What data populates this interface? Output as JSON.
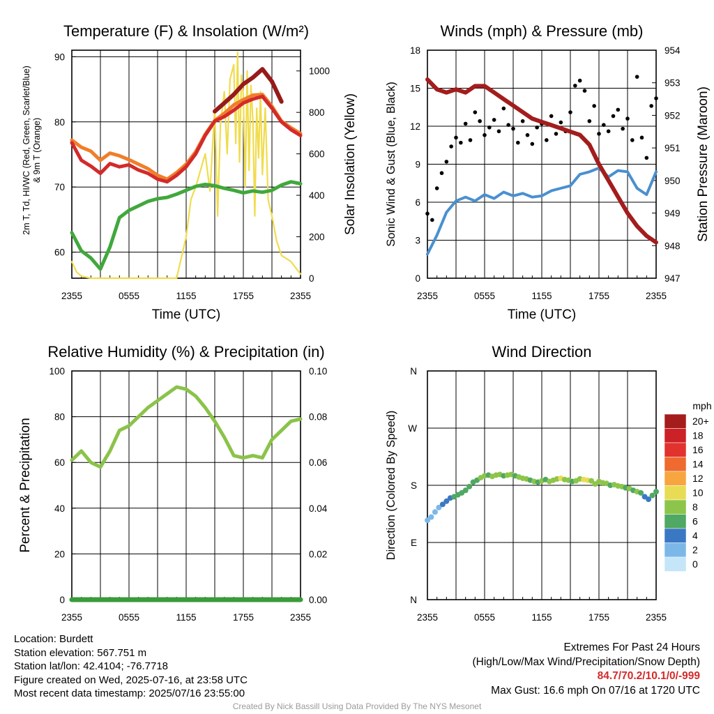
{
  "chart_data": [
    {
      "type": "line",
      "title": "Temperature (F) & Insolation (W/m²)",
      "xlabel": "Time (UTC)",
      "ylabel": "2m T, Td, HI/WC (Red, Green, Scarlet/Blue) & 9m T (Orange)",
      "y2label": "Solar Insolation (Yellow)",
      "x_ticks": [
        "2355",
        "0555",
        "1155",
        "1755",
        "2355"
      ],
      "ylim": [
        56,
        91
      ],
      "y_ticks": [
        60,
        70,
        80,
        90
      ],
      "y2lim": [
        0,
        1100
      ],
      "y2_ticks": [
        0,
        200,
        400,
        600,
        800,
        1000
      ],
      "grid": true,
      "series": [
        {
          "color": "#f07e2a",
          "axis": "left",
          "hours": [
            0,
            1,
            2,
            3,
            4,
            5,
            6,
            7,
            8,
            9,
            10,
            11,
            12,
            13,
            14,
            15,
            16,
            17,
            18,
            19,
            20,
            21,
            22,
            23,
            24
          ],
          "values": [
            77.2,
            76.1,
            75.5,
            74.1,
            75.2,
            74.8,
            74.2,
            73.5,
            72.8,
            71.8,
            71.2,
            72.2,
            73.5,
            75.4,
            78.1,
            80.2,
            81.3,
            82.6,
            83.4,
            84.1,
            84.2,
            82.4,
            80.1,
            79.1,
            78.2
          ]
        },
        {
          "color": "#d42a2a",
          "axis": "left",
          "hours": [
            0,
            1,
            2,
            3,
            4,
            5,
            6,
            7,
            8,
            9,
            10,
            11,
            12,
            13,
            14,
            15,
            16,
            17,
            18,
            19,
            20,
            21,
            22,
            23,
            24
          ],
          "values": [
            76.8,
            74.1,
            73.2,
            72.1,
            73.6,
            73.1,
            73.4,
            72.6,
            72.1,
            71.2,
            70.8,
            71.8,
            73.1,
            75.1,
            77.9,
            80.1,
            80.8,
            81.8,
            82.9,
            83.5,
            83.9,
            82.1,
            80.0,
            78.8,
            77.9
          ]
        },
        {
          "color": "#971a1a",
          "axis": "left",
          "hours": [
            15,
            16,
            17,
            18,
            19,
            20,
            21,
            22
          ],
          "values": [
            81.6,
            82.9,
            84.2,
            85.8,
            86.8,
            88.1,
            86.2,
            83.1
          ]
        },
        {
          "color": "#41a83c",
          "axis": "left",
          "hours": [
            0,
            1,
            2,
            3,
            4,
            5,
            6,
            7,
            8,
            9,
            10,
            11,
            12,
            13,
            14,
            15,
            16,
            17,
            18,
            19,
            20,
            21,
            22,
            23,
            24
          ],
          "values": [
            63.0,
            60.2,
            59.1,
            57.4,
            60.8,
            65.3,
            66.4,
            67.1,
            67.8,
            68.2,
            68.4,
            68.9,
            69.5,
            70.1,
            70.4,
            70.2,
            69.8,
            69.5,
            69.1,
            69.4,
            69.2,
            69.5,
            70.3,
            70.8,
            70.5
          ]
        },
        {
          "color": "#f0dc4e",
          "axis": "right",
          "hours": [
            0,
            0.5,
            1,
            2,
            3,
            4,
            5,
            6,
            7,
            8,
            9,
            10,
            11,
            12,
            12.5,
            13,
            13.5,
            14,
            14.5,
            15,
            15.3,
            15.6,
            16,
            16.3,
            16.6,
            17,
            17.2,
            17.4,
            17.6,
            17.8,
            18,
            18.2,
            18.4,
            18.6,
            18.8,
            19,
            19.2,
            19.4,
            19.6,
            19.8,
            20,
            20.3,
            20.6,
            21,
            21.5,
            22,
            23,
            24
          ],
          "values": [
            80,
            30,
            10,
            0,
            0,
            0,
            0,
            0,
            0,
            0,
            0,
            0,
            0,
            200,
            380,
            440,
            520,
            600,
            420,
            820,
            300,
            740,
            900,
            600,
            960,
            1030,
            650,
            1090,
            560,
            980,
            880,
            440,
            1000,
            520,
            930,
            760,
            300,
            820,
            580,
            900,
            500,
            820,
            380,
            300,
            180,
            110,
            80,
            20
          ]
        }
      ]
    },
    {
      "type": "scatter",
      "title": "Winds (mph) & Pressure (mb)",
      "xlabel": "Time (UTC)",
      "ylabel": "Sonic Wind & Gust (Blue, Black)",
      "y2label": "Station Pressure (Maroon)",
      "x_ticks": [
        "2355",
        "0555",
        "1155",
        "1755",
        "2355"
      ],
      "ylim": [
        0,
        18
      ],
      "y_ticks": [
        0,
        3,
        6,
        9,
        12,
        15,
        18
      ],
      "y2lim": [
        947,
        954
      ],
      "y2_ticks": [
        947,
        948,
        949,
        950,
        951,
        952,
        953,
        954
      ],
      "grid": true,
      "series": [
        {
          "color": "#4a90d0",
          "axis": "left",
          "hours": [
            0,
            1,
            2,
            3,
            4,
            5,
            6,
            7,
            8,
            9,
            10,
            11,
            12,
            13,
            14,
            15,
            16,
            17,
            18,
            19,
            20,
            21,
            22,
            23,
            24
          ],
          "values": [
            1.9,
            3.4,
            5.2,
            6.1,
            6.4,
            6.1,
            6.6,
            6.3,
            6.8,
            6.5,
            6.7,
            6.4,
            6.5,
            6.9,
            7.1,
            7.3,
            8.2,
            8.4,
            8.7,
            8.0,
            8.5,
            8.4,
            7.1,
            6.6,
            8.4
          ]
        },
        {
          "color": "#000000",
          "axis": "left",
          "hours": [
            0,
            0.5,
            1,
            1.5,
            2,
            2.5,
            3,
            3.5,
            4,
            4.5,
            5,
            5.5,
            6,
            6.5,
            7,
            7.5,
            8,
            8.5,
            9,
            9.5,
            10,
            10.5,
            11,
            11.5,
            12,
            12.5,
            13,
            13.5,
            14,
            14.5,
            15,
            15.5,
            16,
            16.5,
            17,
            17.5,
            18,
            18.5,
            19,
            19.5,
            20,
            20.5,
            21,
            21.5,
            22,
            22.5,
            23,
            23.5,
            24
          ],
          "values": [
            5.1,
            4.6,
            7.1,
            8.3,
            9.2,
            10.4,
            11.1,
            10.7,
            12.2,
            10.9,
            13.1,
            12.4,
            11.3,
            11.9,
            12.5,
            11.6,
            13.4,
            12.1,
            11.8,
            10.7,
            12.4,
            11.3,
            10.6,
            11.9,
            12.2,
            10.9,
            12.8,
            11.4,
            12.3,
            11.6,
            13.1,
            15.2,
            15.6,
            14.8,
            12.4,
            13.6,
            11.4,
            12.1,
            11.6,
            12.8,
            13.3,
            11.8,
            12.6,
            10.9,
            15.9,
            11.1,
            9.5,
            13.6,
            14.2
          ]
        },
        {
          "color": "#a31d1d",
          "axis": "right",
          "hours": [
            0,
            1,
            2,
            3,
            4,
            5,
            6,
            7,
            8,
            9,
            10,
            11,
            12,
            13,
            14,
            15,
            16,
            17,
            18,
            19,
            20,
            21,
            22,
            23,
            24
          ],
          "values": [
            953.1,
            952.8,
            952.7,
            952.8,
            952.7,
            952.9,
            952.9,
            952.7,
            952.5,
            952.3,
            952.1,
            951.9,
            951.8,
            951.7,
            951.6,
            951.5,
            951.4,
            951.1,
            950.5,
            950.0,
            949.5,
            949.0,
            948.6,
            948.3,
            948.1
          ]
        }
      ]
    },
    {
      "type": "line",
      "title": "Relative Humidity (%) & Precipitation (in)",
      "ylabel": "Percent & Precipitation",
      "x_ticks": [
        "2355",
        "0555",
        "1155",
        "1755",
        "2355"
      ],
      "ylim": [
        0,
        100
      ],
      "y_ticks": [
        0,
        20,
        40,
        60,
        80,
        100
      ],
      "y2lim": [
        0,
        0.1
      ],
      "y2_ticks": [
        "0.00",
        "0.02",
        "0.04",
        "0.06",
        "0.08",
        "0.10"
      ],
      "grid": true,
      "series": [
        {
          "color": "#8bc34a",
          "axis": "left",
          "hours": [
            0,
            1,
            2,
            3,
            4,
            5,
            6,
            7,
            8,
            9,
            10,
            11,
            12,
            13,
            14,
            15,
            16,
            17,
            18,
            19,
            20,
            21,
            22,
            23,
            24
          ],
          "values": [
            61,
            65,
            60,
            58,
            65,
            74,
            76,
            80,
            84,
            87,
            90,
            93,
            92,
            89,
            84,
            78,
            71,
            63,
            62,
            63,
            62,
            70,
            74,
            78,
            79
          ]
        },
        {
          "color": "#3a9b3a",
          "axis": "right",
          "hours": [
            0,
            24
          ],
          "values": [
            0,
            0
          ]
        }
      ]
    },
    {
      "type": "scatter",
      "title": "Wind Direction",
      "ylabel": "Direction (Colored By Speed)",
      "x_ticks": [
        "2355",
        "0555",
        "1155",
        "1755",
        "2355"
      ],
      "y_ticks": [
        "N",
        "E",
        "S",
        "W",
        "N"
      ],
      "ylim": [
        0,
        360
      ],
      "grid": true,
      "legend_title": "mph",
      "legend_labels": [
        "20+",
        "18",
        "16",
        "14",
        "12",
        "10",
        "8",
        "6",
        "4",
        "2",
        "0"
      ],
      "legend_colors": [
        "#a51c1c",
        "#cb2127",
        "#e1322e",
        "#ee6a2e",
        "#f7a53e",
        "#e8dc54",
        "#8cc54a",
        "#4fa863",
        "#3b78c4",
        "#7bb8e8",
        "#c4e6f8"
      ],
      "series": [
        {
          "hours": [
            0,
            0.4,
            0.8,
            1.2,
            1.6,
            2,
            2.4,
            2.8,
            3.2,
            3.6,
            4,
            4.4,
            4.8,
            5.2,
            5.6,
            6,
            6.4,
            6.8,
            7.2,
            7.6,
            8,
            8.4,
            8.8,
            9.2,
            9.6,
            10,
            10.4,
            10.8,
            11.2,
            11.6,
            12,
            12.4,
            12.8,
            13.2,
            13.6,
            14,
            14.4,
            14.8,
            15.2,
            15.6,
            16,
            16.4,
            16.8,
            17.2,
            17.6,
            18,
            18.4,
            18.8,
            19.2,
            19.6,
            20,
            20.4,
            20.8,
            21.2,
            21.6,
            22,
            22.4,
            22.8,
            23.2,
            23.6,
            24
          ],
          "values": [
            125,
            130,
            138,
            145,
            150,
            155,
            160,
            162,
            165,
            168,
            172,
            178,
            185,
            188,
            192,
            195,
            196,
            194,
            196,
            197,
            195,
            196,
            197,
            195,
            193,
            191,
            190,
            188,
            186,
            185,
            187,
            189,
            186,
            188,
            190,
            191,
            189,
            188,
            186,
            187,
            190,
            189,
            188,
            187,
            182,
            186,
            184,
            183,
            180,
            181,
            179,
            178,
            176,
            175,
            172,
            170,
            168,
            162,
            158,
            164,
            170
          ],
          "speeds": [
            1,
            1,
            2,
            2,
            3,
            4,
            4,
            5,
            5,
            5,
            5,
            6,
            6,
            6,
            7,
            7,
            6,
            7,
            8,
            7,
            6,
            7,
            7,
            6,
            7,
            8,
            7,
            6,
            7,
            6,
            7,
            6,
            7,
            8,
            7,
            9,
            8,
            7,
            6,
            7,
            8,
            10,
            9,
            7,
            8,
            7,
            8,
            7,
            6,
            7,
            8,
            7,
            6,
            7,
            6,
            7,
            5,
            4,
            4,
            5,
            6
          ]
        }
      ]
    }
  ],
  "info": {
    "location": "Location: Burdett",
    "elevation": "Station elevation: 567.751 m",
    "latlon": "Station lat/lon: 42.4104; -76.7718",
    "created": "Figure created on Wed, 2025-07-16, at 23:58 UTC",
    "recent": "Most recent data timestamp: 2025/07/16 23:55:00"
  },
  "extremes": {
    "title": "Extremes For Past 24 Hours",
    "subtitle": "(High/Low/Max Wind/Precipitation/Snow Depth)",
    "values": "84.7/70.2/10.1/0/-999",
    "gust": "Max Gust: 16.6 mph On 07/16 at 1720 UTC"
  },
  "credit": "Created By Nick Bassill Using Data Provided By The NYS Mesonet"
}
